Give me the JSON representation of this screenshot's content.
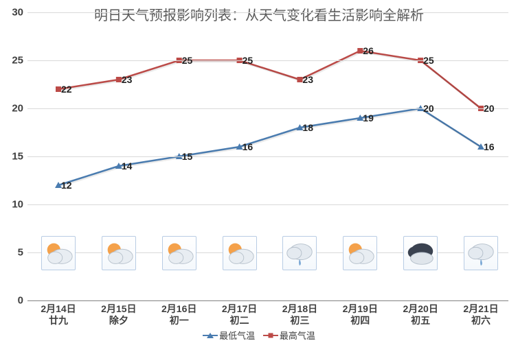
{
  "title": "明日天气预报影响列表：从天气变化看生活影响全解析",
  "type": "line",
  "ylim": [
    0,
    30
  ],
  "ytick_step": 5,
  "yticks": [
    0,
    5,
    10,
    15,
    20,
    25,
    30
  ],
  "grid_color": "#d9d9d9",
  "axis_color": "#808080",
  "background_color": "#ffffff",
  "categories": [
    {
      "date": "2月14日",
      "lunar": "廿九"
    },
    {
      "date": "2月15日",
      "lunar": "除夕"
    },
    {
      "date": "2月16日",
      "lunar": "初一"
    },
    {
      "date": "2月17日",
      "lunar": "初二"
    },
    {
      "date": "2月18日",
      "lunar": "初三"
    },
    {
      "date": "2月19日",
      "lunar": "初四"
    },
    {
      "date": "2月20日",
      "lunar": "初五"
    },
    {
      "date": "2月21日",
      "lunar": "初六"
    }
  ],
  "series": {
    "low": {
      "label": "最低气温",
      "color": "#4a7cb0",
      "marker": "triangle",
      "values": [
        12,
        14,
        15,
        16,
        18,
        19,
        20,
        16
      ]
    },
    "high": {
      "label": "最高气温",
      "color": "#bc4b48",
      "marker": "square",
      "values": [
        22,
        23,
        25,
        25,
        23,
        26,
        25,
        20
      ]
    }
  },
  "weather_icons": [
    "partly",
    "partly",
    "partly",
    "partly",
    "cloud-rain",
    "partly",
    "dark-cloud",
    "cloud-rain"
  ],
  "icon_border_color": "#b8cce4",
  "line_width": 2.5,
  "marker_size": 7,
  "label_fontsize": 14,
  "tick_fontsize": 15,
  "title_fontsize": 20,
  "title_color": "#5a5a5a",
  "text_color": "#404040"
}
